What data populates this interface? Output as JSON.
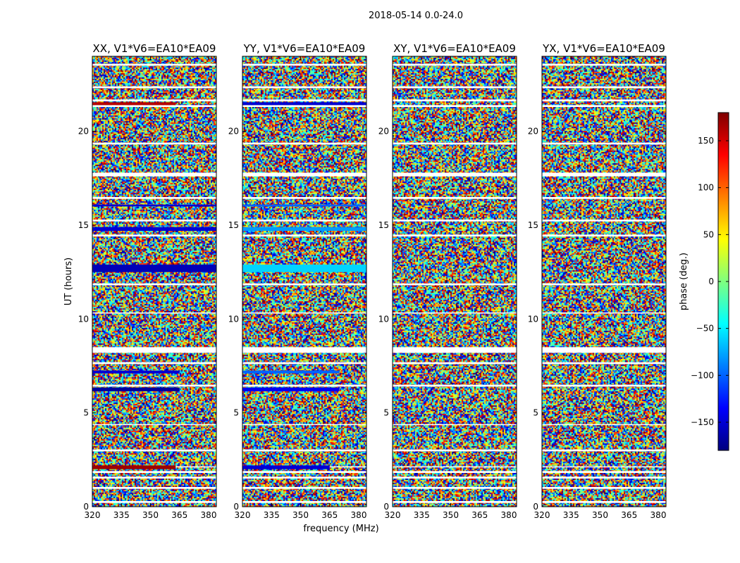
{
  "figure": {
    "suptitle": "2018-05-14 0.0-24.0"
  },
  "chart_data": {
    "type": "heatmap",
    "xlabel": "frequency (MHz)",
    "ylabel": "UT (hours)",
    "xlim": [
      320,
      384
    ],
    "ylim": [
      0,
      24
    ],
    "x_ticks": [
      320,
      335,
      350,
      365,
      380
    ],
    "y_ticks": [
      0,
      5,
      10,
      15,
      20
    ],
    "colorbar": {
      "label": "phase (deg.)",
      "range": [
        -180,
        180
      ],
      "ticks": [
        -150,
        -100,
        -50,
        0,
        50,
        100,
        150
      ],
      "colormap": "jet",
      "colors": [
        "#00007f",
        "#0000ff",
        "#007fff",
        "#00ffff",
        "#7fff7f",
        "#ffff00",
        "#ff7f00",
        "#ff0000",
        "#7f0000"
      ]
    },
    "panels": [
      {
        "title": "XX, V1*V6=EA10*EA09",
        "flagged_hours": [
          [
            0.2,
            0.3
          ],
          [
            0.95,
            1.05
          ],
          [
            1.5,
            1.6
          ],
          [
            1.8,
            1.9
          ],
          [
            2.1,
            2.15
          ],
          [
            2.95,
            3.05
          ],
          [
            4.35,
            4.4
          ],
          [
            6.4,
            6.5
          ],
          [
            7.6,
            7.7
          ],
          [
            8.2,
            8.5
          ],
          [
            10.3,
            10.35
          ],
          [
            11.8,
            11.9
          ],
          [
            14.4,
            14.5
          ],
          [
            15.2,
            15.3
          ],
          [
            16.4,
            16.5
          ],
          [
            17.6,
            17.8
          ],
          [
            19.3,
            19.4
          ],
          [
            21.3,
            21.4
          ],
          [
            21.6,
            21.7
          ],
          [
            22.3,
            22.4
          ],
          [
            23.5,
            23.6
          ]
        ],
        "bands": [
          {
            "hours": [
              2.0,
              2.2
            ],
            "phase": 170,
            "until_mhz": 363
          },
          {
            "hours": [
              6.15,
              6.35
            ],
            "phase": -170,
            "until_mhz": 365
          },
          {
            "hours": [
              7.1,
              7.25
            ],
            "phase": -150,
            "until_mhz": 365
          },
          {
            "hours": [
              12.5,
              12.9
            ],
            "phase": -160,
            "until_mhz": 384
          },
          {
            "hours": [
              14.7,
              14.9
            ],
            "phase": -150,
            "until_mhz": 384
          },
          {
            "hours": [
              16.0,
              16.1
            ],
            "phase": -150,
            "until_mhz": 384
          },
          {
            "hours": [
              21.4,
              21.55
            ],
            "phase": 160,
            "until_mhz": 363
          }
        ]
      },
      {
        "title": "YY, V1*V6=EA10*EA09",
        "flagged_hours": [
          [
            0.2,
            0.3
          ],
          [
            0.95,
            1.05
          ],
          [
            1.5,
            1.6
          ],
          [
            1.8,
            1.9
          ],
          [
            2.1,
            2.15
          ],
          [
            2.95,
            3.05
          ],
          [
            4.35,
            4.4
          ],
          [
            6.4,
            6.5
          ],
          [
            7.6,
            7.7
          ],
          [
            8.2,
            8.5
          ],
          [
            10.3,
            10.35
          ],
          [
            11.8,
            11.9
          ],
          [
            14.4,
            14.5
          ],
          [
            15.2,
            15.3
          ],
          [
            16.4,
            16.5
          ],
          [
            17.6,
            17.8
          ],
          [
            19.3,
            19.4
          ],
          [
            21.3,
            21.4
          ],
          [
            21.6,
            21.7
          ],
          [
            22.3,
            22.4
          ],
          [
            23.5,
            23.6
          ]
        ],
        "bands": [
          {
            "hours": [
              2.0,
              2.2
            ],
            "phase": -150,
            "until_mhz": 365
          },
          {
            "hours": [
              6.15,
              6.35
            ],
            "phase": -140,
            "until_mhz": 370
          },
          {
            "hours": [
              7.1,
              7.25
            ],
            "phase": -100,
            "until_mhz": 370
          },
          {
            "hours": [
              12.5,
              12.9
            ],
            "phase": -60,
            "until_mhz": 384
          },
          {
            "hours": [
              14.7,
              14.9
            ],
            "phase": -80,
            "until_mhz": 384
          },
          {
            "hours": [
              16.0,
              16.1
            ],
            "phase": -100,
            "until_mhz": 384
          },
          {
            "hours": [
              21.4,
              21.55
            ],
            "phase": -150,
            "until_mhz": 384
          }
        ]
      },
      {
        "title": "XY, V1*V6=EA10*EA09",
        "flagged_hours": [
          [
            0.2,
            0.3
          ],
          [
            0.95,
            1.05
          ],
          [
            1.5,
            1.6
          ],
          [
            1.8,
            1.9
          ],
          [
            2.1,
            2.15
          ],
          [
            2.95,
            3.05
          ],
          [
            4.35,
            4.4
          ],
          [
            6.4,
            6.5
          ],
          [
            7.6,
            7.7
          ],
          [
            8.2,
            8.5
          ],
          [
            10.3,
            10.35
          ],
          [
            11.8,
            11.9
          ],
          [
            14.4,
            14.5
          ],
          [
            15.2,
            15.3
          ],
          [
            16.4,
            16.5
          ],
          [
            17.6,
            17.8
          ],
          [
            19.3,
            19.4
          ],
          [
            21.3,
            21.4
          ],
          [
            21.6,
            21.7
          ],
          [
            22.3,
            22.4
          ],
          [
            23.5,
            23.6
          ]
        ],
        "bands": []
      },
      {
        "title": "YX, V1*V6=EA10*EA09",
        "flagged_hours": [
          [
            0.2,
            0.3
          ],
          [
            0.95,
            1.05
          ],
          [
            1.5,
            1.6
          ],
          [
            1.8,
            1.9
          ],
          [
            2.1,
            2.15
          ],
          [
            2.95,
            3.05
          ],
          [
            4.35,
            4.4
          ],
          [
            6.4,
            6.5
          ],
          [
            7.6,
            7.7
          ],
          [
            8.2,
            8.5
          ],
          [
            10.3,
            10.35
          ],
          [
            11.8,
            11.9
          ],
          [
            14.4,
            14.5
          ],
          [
            15.2,
            15.3
          ],
          [
            16.4,
            16.5
          ],
          [
            17.6,
            17.8
          ],
          [
            19.3,
            19.4
          ],
          [
            21.3,
            21.4
          ],
          [
            21.6,
            21.7
          ],
          [
            22.3,
            22.4
          ],
          [
            23.5,
            23.6
          ]
        ],
        "bands": []
      }
    ]
  }
}
